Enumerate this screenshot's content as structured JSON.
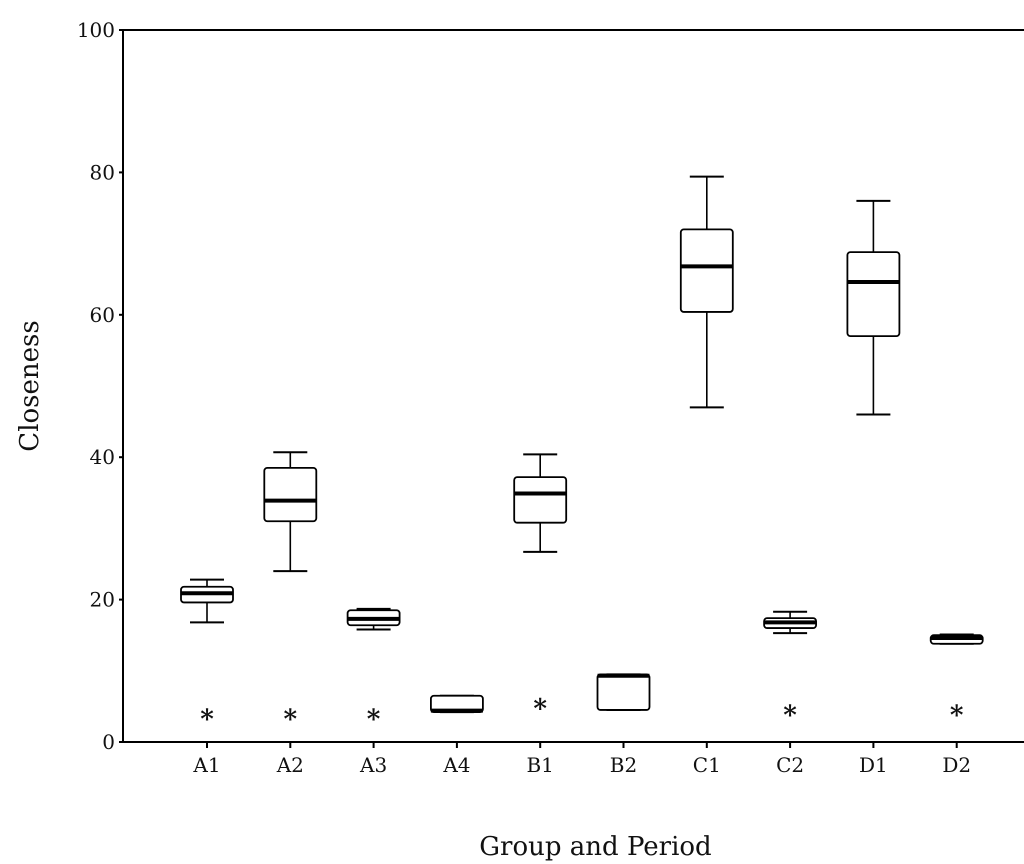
{
  "chart_data": {
    "type": "boxplot",
    "title": "",
    "xlabel": "Group and Period",
    "ylabel": "Closeness",
    "ylim": [
      0,
      100
    ],
    "yticks": [
      0,
      20,
      40,
      60,
      80,
      100
    ],
    "ytick_labels": [
      "0",
      "20",
      "40",
      "60",
      "80",
      "100"
    ],
    "categories": [
      "A1",
      "A2",
      "A3",
      "A4",
      "B1",
      "B2",
      "C1",
      "C2",
      "D1",
      "D2"
    ],
    "boxes": [
      {
        "label": "A1",
        "whisker_low": 16.8,
        "q1": 19.6,
        "median": 20.9,
        "q3": 21.8,
        "whisker_high": 22.8,
        "outliers": [
          3.5
        ]
      },
      {
        "label": "A2",
        "whisker_low": 24.0,
        "q1": 31.0,
        "median": 33.9,
        "q3": 38.5,
        "whisker_high": 40.7,
        "outliers": [
          3.5
        ]
      },
      {
        "label": "A3",
        "whisker_low": 15.8,
        "q1": 16.4,
        "median": 17.3,
        "q3": 18.5,
        "whisker_high": 18.7,
        "outliers": [
          3.5
        ]
      },
      {
        "label": "A4",
        "whisker_low": 4.2,
        "q1": 4.2,
        "median": 4.4,
        "q3": 6.5,
        "whisker_high": 6.5,
        "outliers": []
      },
      {
        "label": "B1",
        "whisker_low": 26.7,
        "q1": 30.8,
        "median": 34.9,
        "q3": 37.2,
        "whisker_high": 40.4,
        "outliers": [
          5.0
        ]
      },
      {
        "label": "B2",
        "whisker_low": 4.5,
        "q1": 4.5,
        "median": 9.3,
        "q3": 9.5,
        "whisker_high": 9.5,
        "outliers": []
      },
      {
        "label": "C1",
        "whisker_low": 47.0,
        "q1": 60.4,
        "median": 66.8,
        "q3": 72.0,
        "whisker_high": 79.4,
        "outliers": []
      },
      {
        "label": "C2",
        "whisker_low": 15.3,
        "q1": 16.0,
        "median": 16.8,
        "q3": 17.4,
        "whisker_high": 18.3,
        "outliers": [
          4.1
        ]
      },
      {
        "label": "D1",
        "whisker_low": 46.0,
        "q1": 57.0,
        "median": 64.6,
        "q3": 68.8,
        "whisker_high": 76.0,
        "outliers": []
      },
      {
        "label": "D2",
        "whisker_low": 13.8,
        "q1": 13.8,
        "median": 14.6,
        "q3": 15.0,
        "whisker_high": 15.1,
        "outliers": [
          4.1
        ]
      }
    ],
    "outlier_marker": "*",
    "grid": false,
    "legend": "none"
  }
}
